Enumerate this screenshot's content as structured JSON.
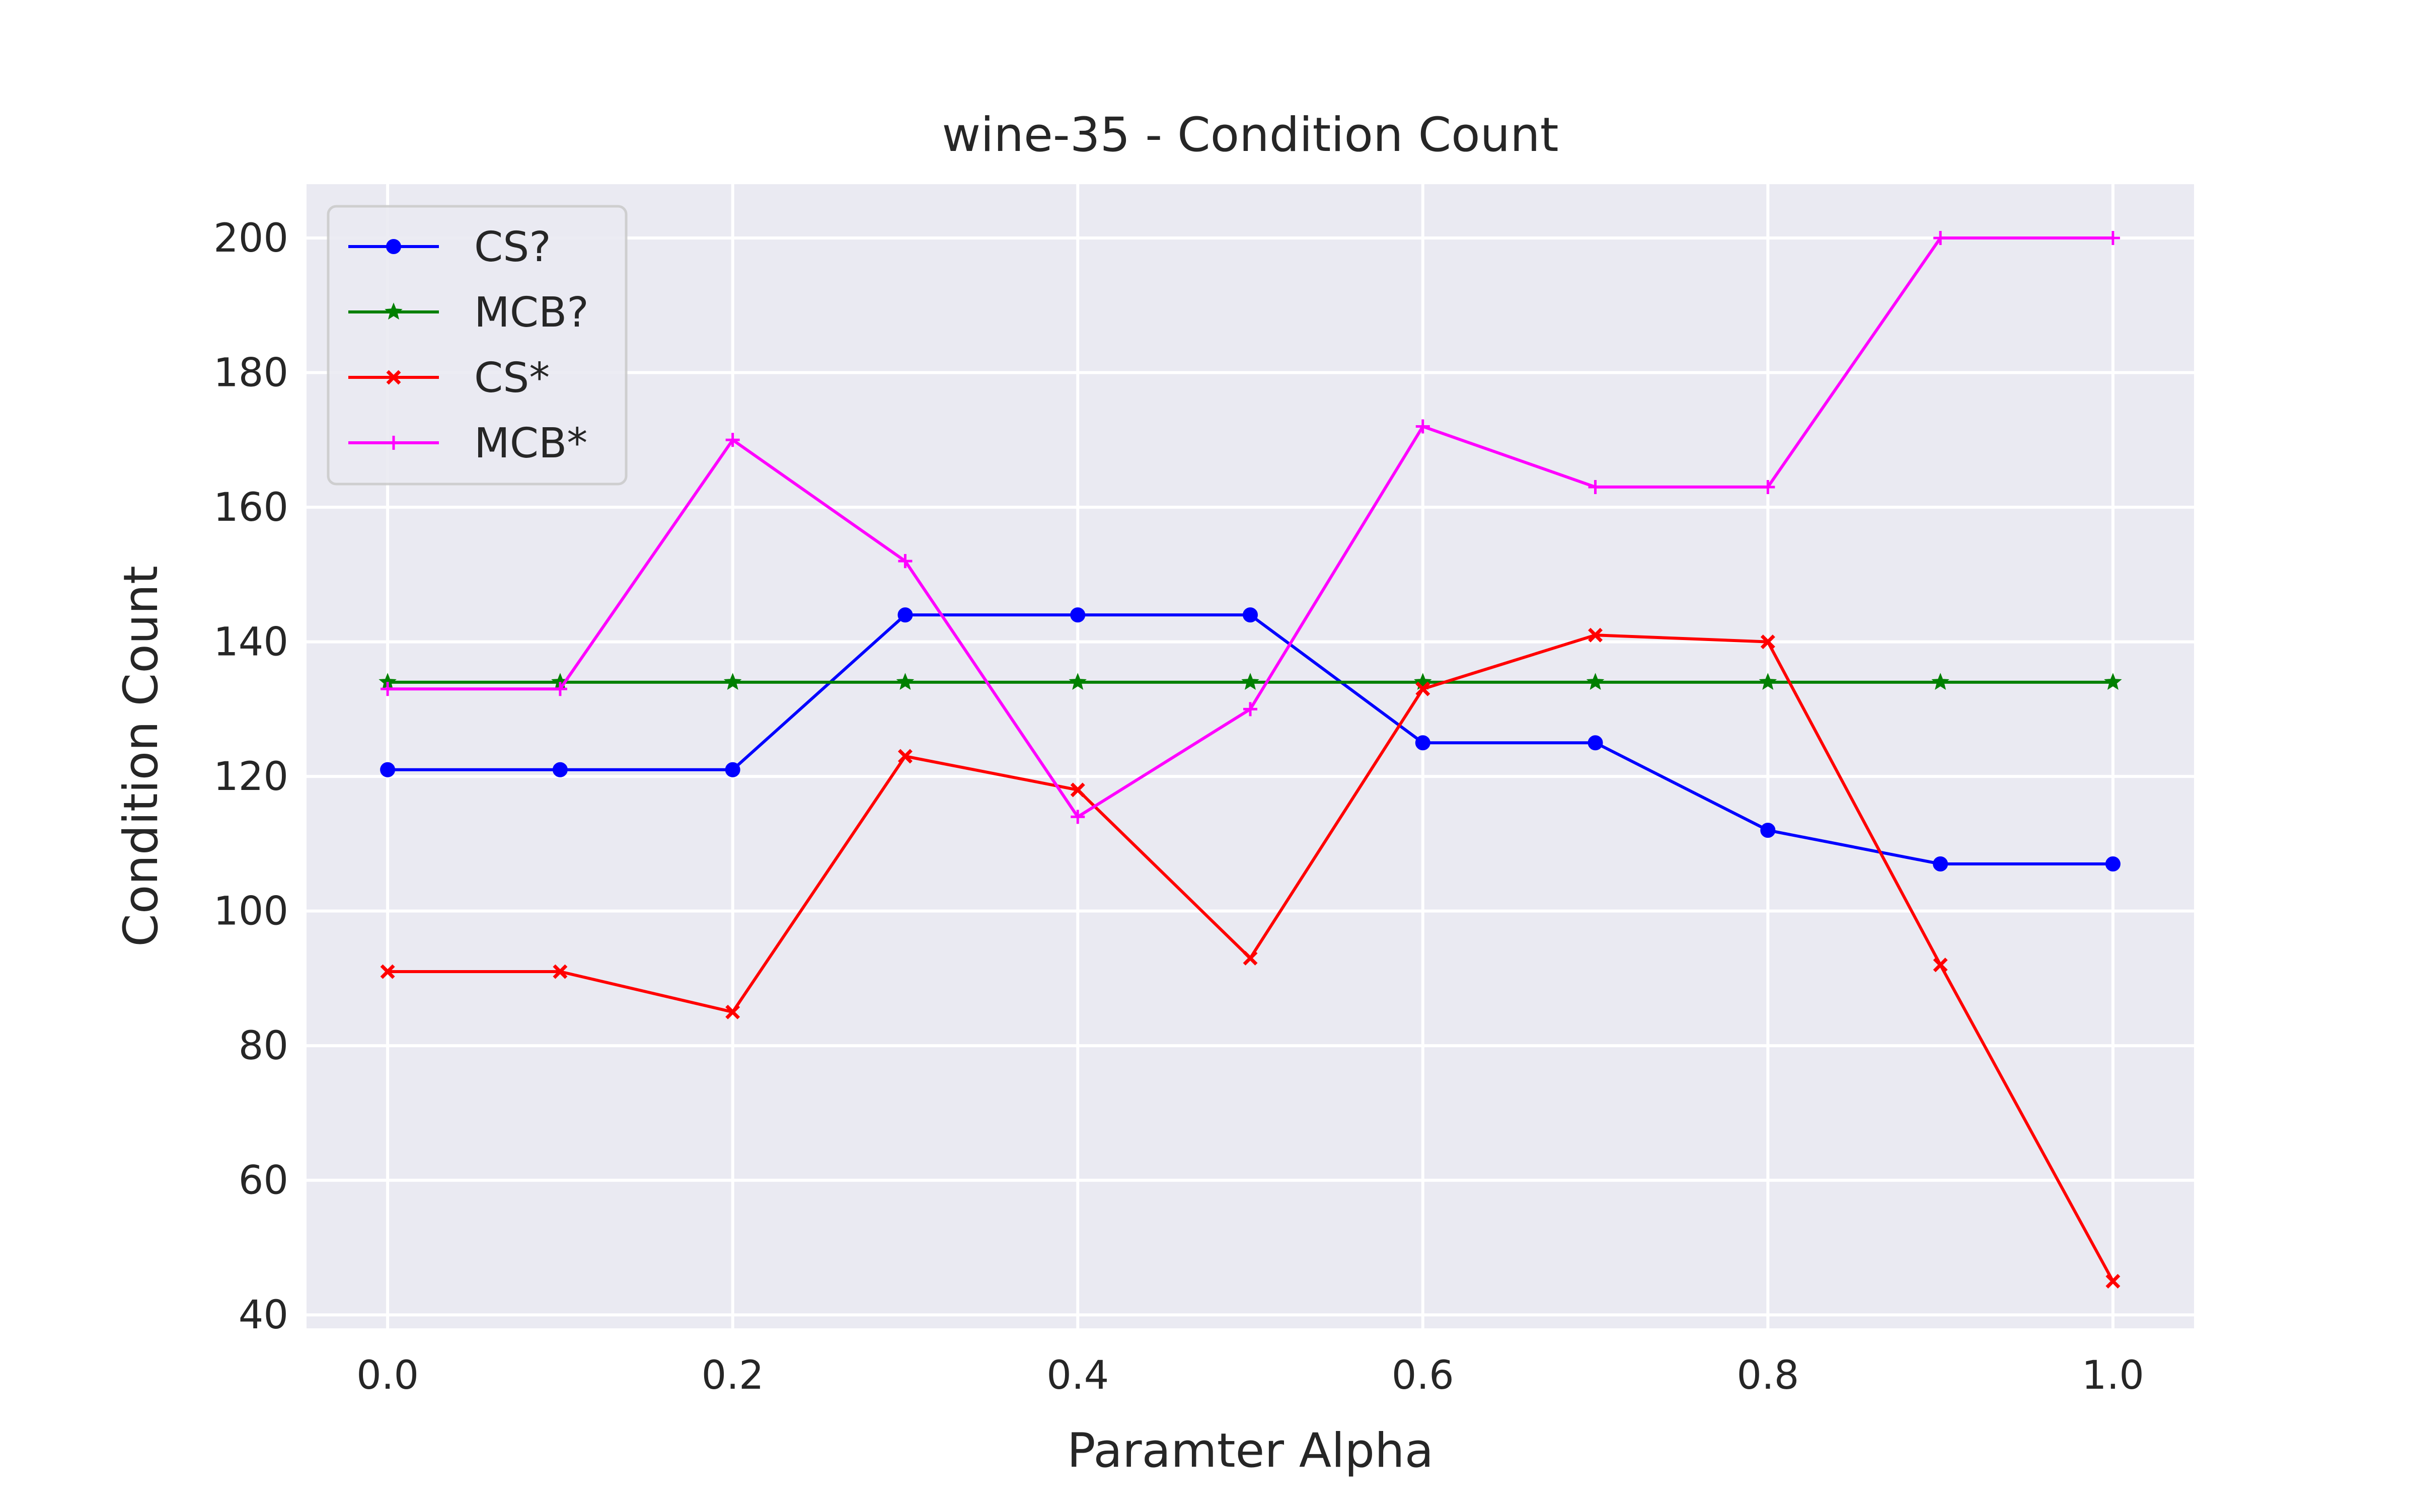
{
  "chart_data": {
    "type": "line",
    "title": "wine-35 - Condition Count",
    "xlabel": "Paramter Alpha",
    "ylabel": "Condition Count",
    "x": [
      0.0,
      0.1,
      0.2,
      0.3,
      0.4,
      0.5,
      0.6,
      0.7,
      0.8,
      0.9,
      1.0
    ],
    "xlim": [
      -0.047,
      1.047
    ],
    "ylim": [
      38,
      208
    ],
    "xticks": [
      0.0,
      0.2,
      0.4,
      0.6,
      0.8,
      1.0
    ],
    "xtick_labels": [
      "0.0",
      "0.2",
      "0.4",
      "0.6",
      "0.8",
      "1.0"
    ],
    "yticks": [
      40,
      60,
      80,
      100,
      120,
      140,
      160,
      180,
      200
    ],
    "ytick_labels": [
      "40",
      "60",
      "80",
      "100",
      "120",
      "140",
      "160",
      "180",
      "200"
    ],
    "grid": true,
    "legend_position": "top-left",
    "background_color": "#eaeaf2",
    "grid_color": "#ffffff",
    "series": [
      {
        "name": "CS?",
        "color": "#0000ff",
        "marker": "circle",
        "values": [
          121,
          121,
          121,
          144,
          144,
          144,
          125,
          125,
          112,
          107,
          107
        ]
      },
      {
        "name": "MCB?",
        "color": "#008000",
        "marker": "star",
        "values": [
          134,
          134,
          134,
          134,
          134,
          134,
          134,
          134,
          134,
          134,
          134
        ]
      },
      {
        "name": "CS*",
        "color": "#ff0000",
        "marker": "x",
        "values": [
          91,
          91,
          85,
          123,
          118,
          93,
          133,
          141,
          140,
          92,
          45
        ]
      },
      {
        "name": "MCB*",
        "color": "#ff00ff",
        "marker": "plus",
        "values": [
          133,
          133,
          170,
          152,
          114,
          130,
          172,
          163,
          163,
          200,
          200
        ]
      }
    ]
  }
}
